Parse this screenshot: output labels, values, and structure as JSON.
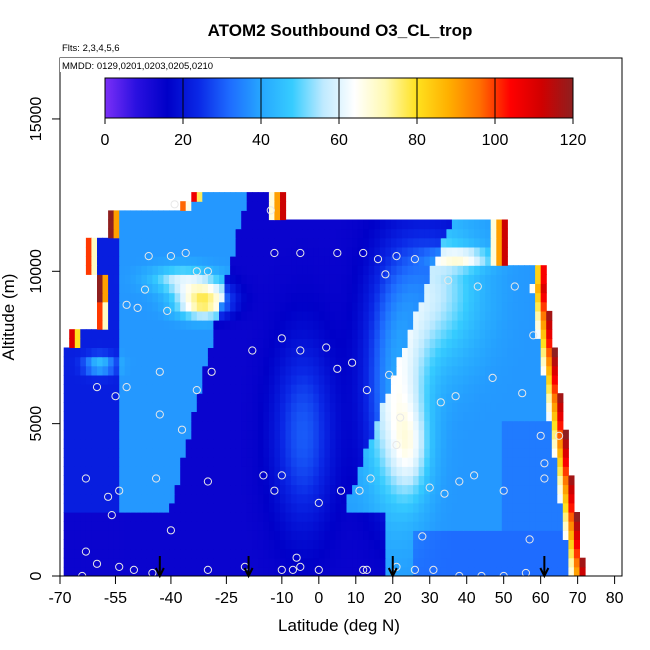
{
  "chart_data": {
    "type": "heatmap",
    "title": "ATOM2 Southbound O3_CL_trop",
    "flights_note": "Flts: 2,3,4,5,6",
    "dates_note": "MMDD: 0129,0201,0203,0205,0210",
    "xlabel": "Latitude (deg N)",
    "ylabel": "Altitude (m)",
    "xlim": [
      -70,
      82
    ],
    "ylim": [
      0,
      17000
    ],
    "x_ticks": [
      -70,
      -55,
      -40,
      -25,
      -10,
      0,
      10,
      20,
      30,
      40,
      50,
      60,
      70,
      80
    ],
    "x_tick_labels": [
      "-70",
      "-55",
      "-40",
      "-25",
      "-10",
      "0",
      "10",
      "20",
      "30",
      "40",
      "50",
      "60",
      "70",
      "80"
    ],
    "y_ticks": [
      0,
      5000,
      10000,
      15000
    ],
    "y_tick_labels": [
      "0",
      "5000",
      "10000",
      "15000"
    ],
    "colorbar": {
      "min": 0,
      "max": 120,
      "ticks": [
        0,
        20,
        40,
        60,
        80,
        100,
        120
      ],
      "tick_labels": [
        "0",
        "20",
        "40",
        "60",
        "80",
        "100",
        "120"
      ],
      "colors": [
        "#7b2ff7",
        "#2a10e0",
        "#0000c8",
        "#0a28e6",
        "#1e6cff",
        "#26a6ff",
        "#36ccff",
        "#bfeaff",
        "#ffffff",
        "#fff9b0",
        "#ffe11e",
        "#ffb000",
        "#ff7000",
        "#ff0000",
        "#d00000",
        "#8e1f1f"
      ]
    },
    "arrow_latitudes": [
      -43,
      -19,
      20,
      61
    ],
    "observation_points": [
      [
        -39,
        12200
      ],
      [
        -64,
        0
      ],
      [
        -63,
        3200
      ],
      [
        -60,
        6200
      ],
      [
        -55,
        5900
      ],
      [
        -52,
        6200
      ],
      [
        -43,
        6700
      ],
      [
        -57,
        2600
      ],
      [
        -56,
        2000
      ],
      [
        -54,
        2800
      ],
      [
        -44,
        3200
      ],
      [
        -30,
        3100
      ],
      [
        -29,
        6700
      ],
      [
        -33,
        6100
      ],
      [
        -37,
        4800
      ],
      [
        -43,
        5300
      ],
      [
        -47,
        9400
      ],
      [
        -46,
        10500
      ],
      [
        -40,
        10500
      ],
      [
        -36,
        10600
      ],
      [
        -33,
        10000
      ],
      [
        -30,
        10000
      ],
      [
        -13,
        12000
      ],
      [
        -12,
        10600
      ],
      [
        -5,
        10600
      ],
      [
        5,
        10600
      ],
      [
        12,
        10600
      ],
      [
        16,
        10400
      ],
      [
        -41,
        8700
      ],
      [
        -49,
        8800
      ],
      [
        -52,
        8900
      ],
      [
        -18,
        7400
      ],
      [
        -10,
        7800
      ],
      [
        -5,
        7400
      ],
      [
        2,
        7500
      ],
      [
        5,
        6800
      ],
      [
        9,
        7000
      ],
      [
        13,
        6100
      ],
      [
        19,
        6600
      ],
      [
        22,
        5200
      ],
      [
        33,
        5700
      ],
      [
        37,
        5900
      ],
      [
        47,
        6500
      ],
      [
        55,
        6000
      ],
      [
        -15,
        3300
      ],
      [
        -10,
        3300
      ],
      [
        -12,
        2800
      ],
      [
        0,
        2400
      ],
      [
        6,
        2800
      ],
      [
        11,
        2800
      ],
      [
        14,
        3200
      ],
      [
        21,
        4300
      ],
      [
        30,
        2900
      ],
      [
        34,
        2700
      ],
      [
        38,
        3100
      ],
      [
        42,
        3300
      ],
      [
        50,
        2800
      ],
      [
        57,
        1200
      ],
      [
        21,
        300
      ],
      [
        28,
        1300
      ],
      [
        31,
        200
      ],
      [
        38,
        0
      ],
      [
        44,
        0
      ],
      [
        50,
        0
      ],
      [
        56,
        100
      ],
      [
        61,
        3200
      ],
      [
        65,
        4600
      ],
      [
        -5,
        300
      ],
      [
        -10,
        200
      ],
      [
        -45,
        100
      ],
      [
        -50,
        200
      ],
      [
        -54,
        300
      ],
      [
        -60,
        400
      ],
      [
        -63,
        800
      ],
      [
        -30,
        200
      ],
      [
        -20,
        300
      ],
      [
        -7,
        200
      ],
      [
        12,
        200
      ],
      [
        26,
        200
      ],
      [
        13,
        200
      ],
      [
        0,
        200
      ],
      [
        18,
        9900
      ],
      [
        21,
        10500
      ],
      [
        26,
        10400
      ],
      [
        35,
        9700
      ],
      [
        43,
        9500
      ],
      [
        53,
        9500
      ],
      [
        58,
        7900
      ],
      [
        60,
        4600
      ],
      [
        61,
        3700
      ],
      [
        -6,
        600
      ],
      [
        -40,
        1500
      ]
    ]
  }
}
